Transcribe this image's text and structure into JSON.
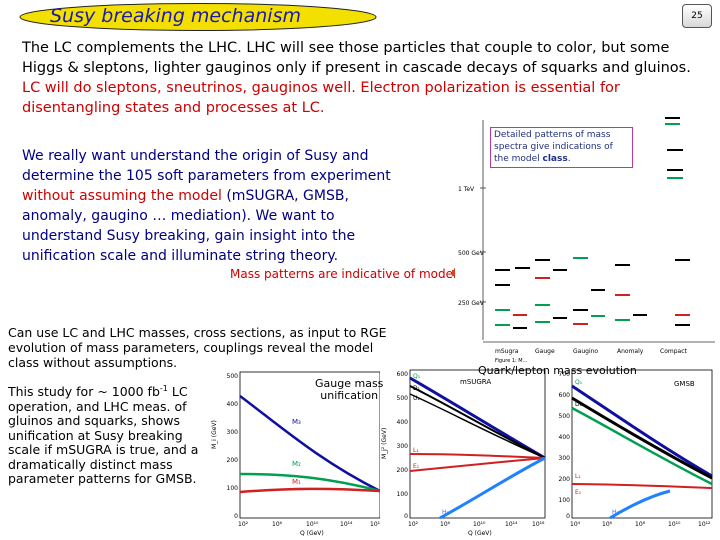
{
  "slide": {
    "title": "Susy breaking mechanism",
    "page_number": "25"
  },
  "intro": {
    "line1": "The LC complements the LHC.  LHC will see those particles that couple to color, but some",
    "line2": "Higgs & sleptons, lighter gauginos only if present in cascade decays of squarks and gluinos.",
    "line3_red": "LC will do sleptons, sneutrinos, gauginos well.   Electron polarization is essential for",
    "line4_red": "disentangling states and processes at LC."
  },
  "paragraph2": {
    "part1": "We really want understand the origin of Susy and determine the 105 soft parameters from experiment ",
    "part2_red": "without assuming the model",
    "part3": " (mSUGRA, GMSB, anomaly, gaugino … mediation).   We want to understand Susy breaking, gain insight into the unification scale and illuminate string theory."
  },
  "mass_patterns_label": "Mass patterns are indicative of model:",
  "callout": {
    "text_before": "Detailed patterns of mass spectra give indications of the model ",
    "text_class": "class",
    "text_after": "."
  },
  "paragraph3": "Can use LC and LHC masses, cross sections, as input to RGE evolution of mass parameters, couplings  reveal the model class without assumptions.",
  "paragraph4": {
    "before": "This study for ~ 1000 fb",
    "sup": "-1",
    "after": " LC operation, and LHC meas. of gluinos and squarks, shows unification at Susy breaking scale if mSUGRA is true, and a dramatically distinct mass parameter patterns for GMSB."
  },
  "labels": {
    "gauge_mass_unification_1": "Gauge mass",
    "gauge_mass_unification_2": "unification",
    "quark_lepton_evolution": "Quark/lepton mass evolution"
  },
  "spectrum": {
    "y_labels": [
      "1 TeV",
      "500 GeV",
      "250 GeV"
    ],
    "models": [
      "mSugra",
      "Gauge",
      "Gaugino",
      "Anomaly",
      "Compact"
    ],
    "caption": "Figure 1: M..."
  },
  "plots": {
    "gauge": {
      "ylabel": "M_i (GeV)",
      "xlabel": "Q (GeV)",
      "yticks": [
        "500",
        "400",
        "300",
        "200",
        "100",
        "0"
      ],
      "xticks": [
        "10²",
        "10⁶",
        "10¹⁰",
        "10¹⁴",
        "10¹⁸"
      ],
      "curves": [
        "M₃",
        "M₂",
        "M₁"
      ]
    },
    "msugra": {
      "ylabel": "M_j² (GeV)",
      "xlabel": "Q (GeV)",
      "legend": "mSUGRA",
      "yticks": [
        "600",
        "500",
        "400",
        "300",
        "200",
        "100",
        "0"
      ],
      "xticks": [
        "10²",
        "10⁶",
        "10¹⁰",
        "10¹⁴",
        "10¹⁸"
      ],
      "curves": [
        "Q₁",
        "D₁",
        "U₁",
        "L₁",
        "E₁",
        "H₂"
      ]
    },
    "gmsb": {
      "legend": "GMSB",
      "yticks": [
        "700",
        "600",
        "500",
        "400",
        "300",
        "200",
        "100",
        "0"
      ],
      "xticks": [
        "10⁴",
        "10⁶",
        "10⁸",
        "10¹⁰",
        "10¹²"
      ],
      "curves": [
        "Q₁",
        "D₁",
        "L₁",
        "E₁",
        "H₂"
      ]
    }
  },
  "colors": {
    "title": "#1a1aa8",
    "emphasis": "#cc0000",
    "paragraph2": "#000080",
    "title_oval": "#f4e000"
  }
}
